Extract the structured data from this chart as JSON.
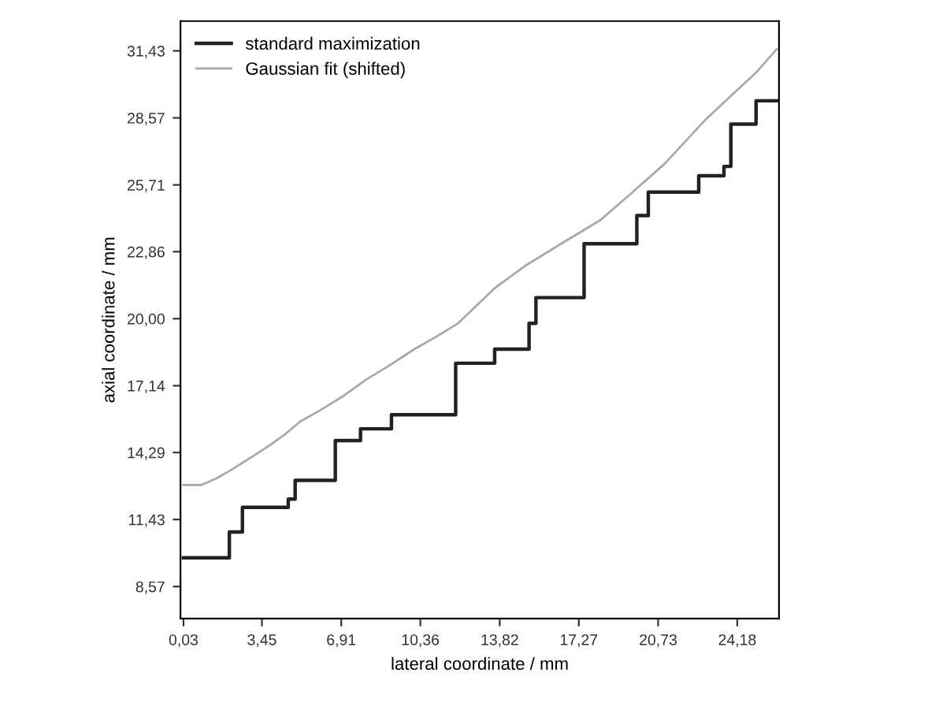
{
  "chart_data": {
    "type": "line",
    "xlabel": "lateral coordinate / mm",
    "ylabel": "axial coordinate / mm",
    "xlim": [
      -0.1,
      26.0
    ],
    "ylim": [
      7.2,
      32.7
    ],
    "xticks": [
      {
        "value": 0.03,
        "label": "0,03"
      },
      {
        "value": 3.45,
        "label": "3,45"
      },
      {
        "value": 6.91,
        "label": "6,91"
      },
      {
        "value": 10.36,
        "label": "10,36"
      },
      {
        "value": 13.82,
        "label": "13,82"
      },
      {
        "value": 17.27,
        "label": "17,27"
      },
      {
        "value": 20.73,
        "label": "20,73"
      },
      {
        "value": 24.18,
        "label": "24,18"
      }
    ],
    "yticks": [
      {
        "value": 8.57,
        "label": "8,57"
      },
      {
        "value": 11.43,
        "label": "11,43"
      },
      {
        "value": 14.29,
        "label": "14,29"
      },
      {
        "value": 17.14,
        "label": "17,14"
      },
      {
        "value": 20.0,
        "label": "20,00"
      },
      {
        "value": 22.86,
        "label": "22,86"
      },
      {
        "value": 25.71,
        "label": "25,71"
      },
      {
        "value": 28.57,
        "label": "28,57"
      },
      {
        "value": 31.43,
        "label": "31,43"
      }
    ],
    "grid": false,
    "legend": "top left",
    "marker": "none",
    "line_style": "solid",
    "series": [
      {
        "name": "standard maximization",
        "type": "step",
        "color": "#222222",
        "x": [
          0.03,
          2.03,
          2.6,
          4.6,
          4.9,
          6.65,
          7.75,
          9.1,
          11.9,
          13.6,
          15.1,
          15.4,
          17.5,
          19.8,
          20.3,
          22.5,
          23.6,
          23.9,
          25.0,
          25.9
        ],
        "values": [
          9.8,
          10.9,
          11.95,
          12.3,
          13.1,
          14.8,
          15.3,
          15.9,
          18.1,
          18.7,
          19.8,
          20.9,
          23.2,
          24.4,
          25.4,
          26.1,
          26.5,
          28.3,
          29.3,
          29.3
        ]
      },
      {
        "name": "Gaussian fit (shifted)",
        "color": "#a8a8a8",
        "x": [
          0.03,
          0.8,
          1.5,
          2.2,
          3.0,
          3.8,
          4.5,
          5.1,
          6.0,
          7.0,
          8.0,
          9.0,
          10.1,
          11.0,
          12.0,
          13.6,
          15.0,
          16.5,
          18.2,
          19.5,
          21.0,
          22.8,
          24.0,
          25.0,
          25.9
        ],
        "values": [
          12.9,
          12.9,
          13.2,
          13.6,
          14.1,
          14.6,
          15.1,
          15.6,
          16.1,
          16.7,
          17.4,
          18.0,
          18.7,
          19.2,
          19.8,
          21.3,
          22.3,
          23.2,
          24.2,
          25.3,
          26.6,
          28.5,
          29.6,
          30.5,
          31.5
        ]
      }
    ]
  }
}
